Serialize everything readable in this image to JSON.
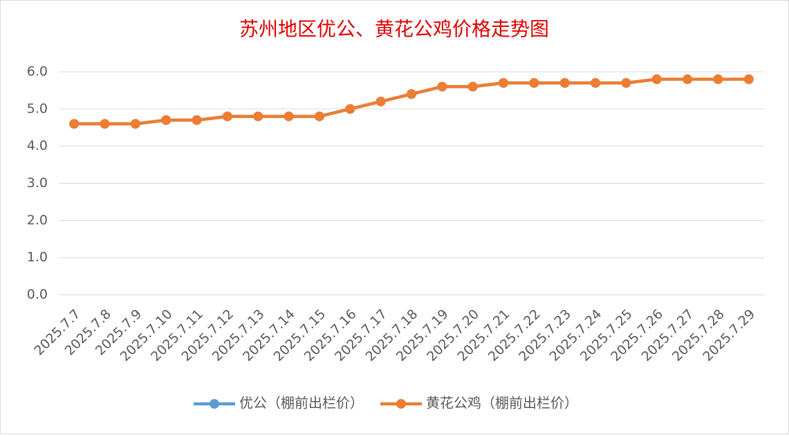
{
  "chart_data": {
    "type": "line",
    "title": "苏州地区优公、黄花公鸡价格走势图",
    "categories": [
      "2025.7.7",
      "2025.7.8",
      "2025.7.9",
      "2025.7.10",
      "2025.7.11",
      "2025.7.12",
      "2025.7.13",
      "2025.7.14",
      "2025.7.15",
      "2025.7.16",
      "2025.7.17",
      "2025.7.18",
      "2025.7.19",
      "2025.7.20",
      "2025.7.21",
      "2025.7.22",
      "2025.7.23",
      "2025.7.24",
      "2025.7.25",
      "2025.7.26",
      "2025.7.27",
      "2025.7.28",
      "2025.7.29"
    ],
    "series": [
      {
        "name": "优公（棚前出栏价）",
        "color": "#5b9bd5",
        "values": [
          4.6,
          4.6,
          4.6,
          4.7,
          4.7,
          4.8,
          4.8,
          4.8,
          4.8,
          5.0,
          5.2,
          5.4,
          5.6,
          5.6,
          5.7,
          5.7,
          5.7,
          5.7,
          5.7,
          5.8,
          5.8,
          5.8,
          5.8
        ]
      },
      {
        "name": "黄花公鸡（棚前出栏价）",
        "color": "#ed7d31",
        "values": [
          4.6,
          4.6,
          4.6,
          4.7,
          4.7,
          4.8,
          4.8,
          4.8,
          4.8,
          5.0,
          5.2,
          5.4,
          5.6,
          5.6,
          5.7,
          5.7,
          5.7,
          5.7,
          5.7,
          5.8,
          5.8,
          5.8,
          5.8
        ]
      }
    ],
    "ylim": [
      0,
      6
    ],
    "yticks": [
      {
        "value": 0,
        "label": "0.0"
      },
      {
        "value": 1,
        "label": "1.0"
      },
      {
        "value": 2,
        "label": "2.0"
      },
      {
        "value": 3,
        "label": "3.0"
      },
      {
        "value": 4,
        "label": "4.0"
      },
      {
        "value": 5,
        "label": "5.0"
      },
      {
        "value": 6,
        "label": "6.0"
      }
    ],
    "grid": true,
    "legend": "bottom"
  }
}
